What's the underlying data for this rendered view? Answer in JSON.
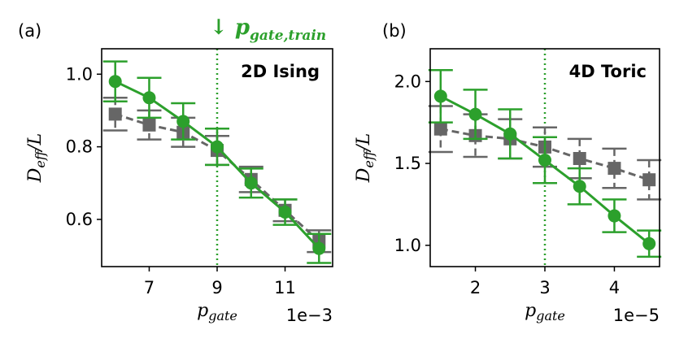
{
  "figure": {
    "annotation": "↓ p",
    "annotation_sub": "gate,train",
    "colors": {
      "green": "#2ca02c",
      "gray": "#666666",
      "annotation": "#2ca02c"
    }
  },
  "chart_data": [
    {
      "type": "line",
      "panel_label": "(a)",
      "inset_label": "2D Ising",
      "ylabel_main": "D",
      "ylabel_sub": "eff",
      "ylabel_tail": "/L",
      "xlabel_main": "p",
      "xlabel_sub": "gate",
      "offset_text": "1e−3",
      "x_ticks": [
        7,
        9,
        11
      ],
      "y_ticks": [
        0.6,
        0.8,
        1.0
      ],
      "y_tick_labels": [
        "0.6",
        "0.8",
        "1.0"
      ],
      "xlim": [
        5.6,
        12.4
      ],
      "ylim": [
        0.47,
        1.07
      ],
      "vline_x": 9,
      "series": [
        {
          "marker": "circle",
          "color": "#2ca02c",
          "style": "solid",
          "x": [
            6,
            7,
            8,
            9,
            10,
            11,
            12
          ],
          "y": [
            0.98,
            0.935,
            0.87,
            0.8,
            0.7,
            0.62,
            0.52
          ],
          "err": [
            0.055,
            0.055,
            0.05,
            0.05,
            0.04,
            0.035,
            0.04
          ]
        },
        {
          "marker": "square",
          "color": "#666666",
          "style": "dashed",
          "x": [
            6,
            7,
            8,
            9,
            10,
            11,
            12
          ],
          "y": [
            0.89,
            0.86,
            0.84,
            0.79,
            0.71,
            0.625,
            0.54
          ],
          "err": [
            0.045,
            0.04,
            0.04,
            0.04,
            0.035,
            0.03,
            0.03
          ]
        }
      ]
    },
    {
      "type": "line",
      "panel_label": "(b)",
      "inset_label": "4D Toric",
      "ylabel_main": "D",
      "ylabel_sub": "eff",
      "ylabel_tail": "/L",
      "xlabel_main": "p",
      "xlabel_sub": "gate",
      "offset_text": "1e−5",
      "x_ticks": [
        2,
        3,
        4
      ],
      "y_ticks": [
        1.0,
        1.5,
        2.0
      ],
      "y_tick_labels": [
        "1.0",
        "1.5",
        "2.0"
      ],
      "xlim": [
        1.35,
        4.65
      ],
      "ylim": [
        0.87,
        2.2
      ],
      "vline_x": 3,
      "series": [
        {
          "marker": "circle",
          "color": "#2ca02c",
          "style": "solid",
          "x": [
            1.5,
            2,
            2.5,
            3,
            3.5,
            4,
            4.5
          ],
          "y": [
            1.91,
            1.8,
            1.68,
            1.52,
            1.36,
            1.18,
            1.01
          ],
          "err": [
            0.16,
            0.15,
            0.15,
            0.14,
            0.11,
            0.1,
            0.08
          ]
        },
        {
          "marker": "square",
          "color": "#666666",
          "style": "dashed",
          "x": [
            1.5,
            2,
            2.5,
            3,
            3.5,
            4,
            4.5
          ],
          "y": [
            1.71,
            1.67,
            1.65,
            1.6,
            1.53,
            1.47,
            1.4
          ],
          "err": [
            0.14,
            0.13,
            0.12,
            0.12,
            0.12,
            0.12,
            0.12
          ]
        }
      ]
    }
  ]
}
